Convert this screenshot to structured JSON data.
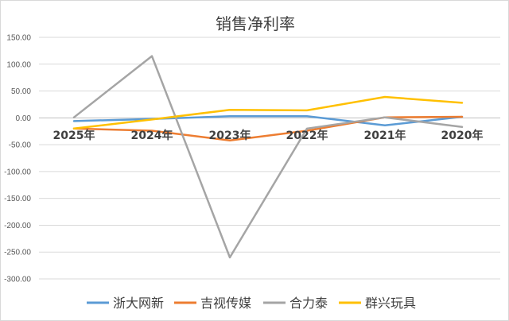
{
  "chart_data": {
    "type": "line",
    "title": "销售净利率",
    "categories": [
      "2025年",
      "2024年",
      "2023年",
      "2022年",
      "2021年",
      "2020年"
    ],
    "ylim": [
      -300,
      150
    ],
    "yticks": [
      "150.00",
      "100.00",
      "50.00",
      "0.00",
      "-50.00",
      "-100.00",
      "-150.00",
      "-200.00",
      "-250.00",
      "-300.00"
    ],
    "ytick_values": [
      150,
      100,
      50,
      0,
      -50,
      -100,
      -150,
      -200,
      -250,
      -300
    ],
    "grid": true,
    "legend_position": "bottom",
    "series": [
      {
        "name": "浙大网新",
        "color": "#5b9bd5",
        "values": [
          -6,
          -2,
          3,
          3,
          -14,
          2
        ]
      },
      {
        "name": "吉视传媒",
        "color": "#ed7d31",
        "values": [
          -20,
          -24,
          -42,
          -24,
          1,
          2
        ]
      },
      {
        "name": "合力泰",
        "color": "#a5a5a5",
        "values": [
          1,
          115,
          -260,
          -20,
          1,
          -17
        ]
      },
      {
        "name": "群兴玩具",
        "color": "#ffc000",
        "values": [
          -20,
          -3,
          15,
          14,
          39,
          28
        ]
      }
    ]
  }
}
